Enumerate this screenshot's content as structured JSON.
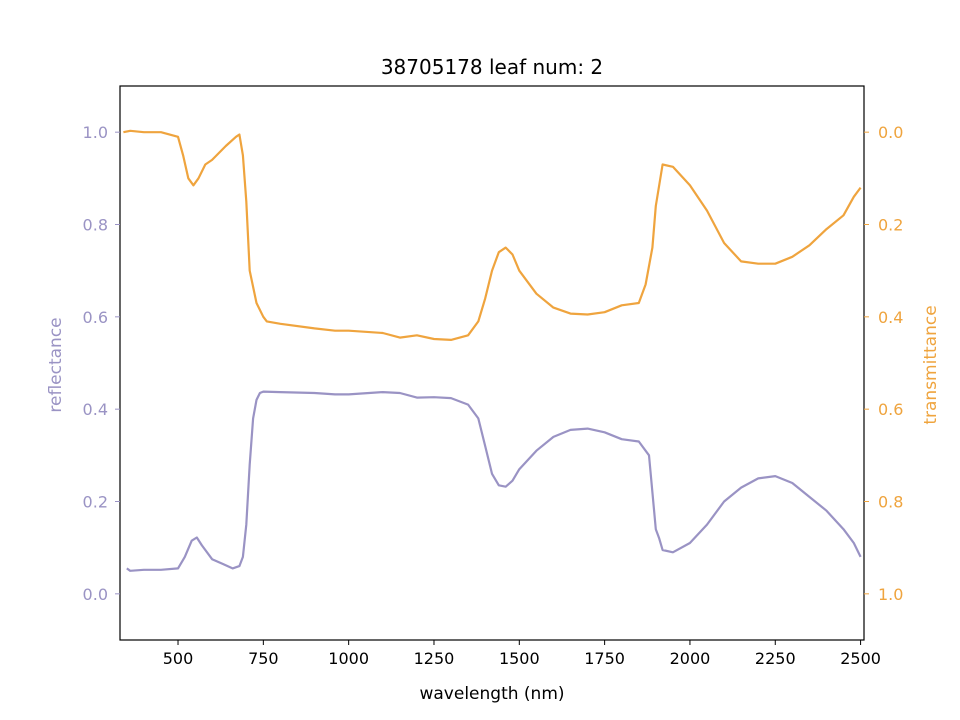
{
  "chart_data": {
    "type": "line",
    "title": "38705178 leaf num: 2",
    "xlabel": "wavelength (nm)",
    "ylabel_left": "reflectance",
    "ylabel_right": "transmittance",
    "xlim": [
      330,
      2510
    ],
    "ylim_left": [
      -0.1,
      1.1
    ],
    "ylim_right_inverted": [
      1.1,
      -0.1
    ],
    "x_ticks": [
      500,
      750,
      1000,
      1250,
      1500,
      1750,
      2000,
      2250,
      2500
    ],
    "x_tick_labels": [
      "500",
      "750",
      "1000",
      "1250",
      "1500",
      "1750",
      "2000",
      "2250",
      "2500"
    ],
    "left_ticks": [
      0.0,
      0.2,
      0.4,
      0.6,
      0.8,
      1.0
    ],
    "left_tick_labels": [
      "0.0",
      "0.2",
      "0.4",
      "0.6",
      "0.8",
      "1.0"
    ],
    "right_ticks": [
      0.0,
      0.2,
      0.4,
      0.6,
      0.8,
      1.0
    ],
    "right_tick_labels": [
      "0.0",
      "0.2",
      "0.4",
      "0.6",
      "0.8",
      "1.0"
    ],
    "grid": false,
    "colors": {
      "reflectance": "#9a93c4",
      "transmittance": "#efa43e"
    },
    "series": [
      {
        "name": "reflectance",
        "axis": "left",
        "x": [
          350,
          360,
          400,
          450,
          500,
          520,
          540,
          555,
          570,
          600,
          630,
          660,
          680,
          690,
          700,
          710,
          720,
          730,
          740,
          750,
          800,
          900,
          960,
          1000,
          1100,
          1150,
          1200,
          1250,
          1300,
          1350,
          1380,
          1400,
          1420,
          1440,
          1460,
          1480,
          1500,
          1550,
          1600,
          1650,
          1700,
          1750,
          1800,
          1850,
          1880,
          1900,
          1910,
          1920,
          1950,
          2000,
          2050,
          2100,
          2150,
          2200,
          2250,
          2300,
          2350,
          2400,
          2450,
          2480,
          2500
        ],
        "y": [
          0.055,
          0.05,
          0.052,
          0.052,
          0.055,
          0.08,
          0.115,
          0.122,
          0.105,
          0.075,
          0.065,
          0.055,
          0.06,
          0.08,
          0.15,
          0.28,
          0.38,
          0.42,
          0.435,
          0.438,
          0.437,
          0.435,
          0.432,
          0.432,
          0.437,
          0.435,
          0.425,
          0.426,
          0.424,
          0.41,
          0.38,
          0.32,
          0.26,
          0.235,
          0.232,
          0.245,
          0.27,
          0.31,
          0.34,
          0.355,
          0.358,
          0.35,
          0.335,
          0.33,
          0.3,
          0.14,
          0.12,
          0.095,
          0.09,
          0.11,
          0.15,
          0.2,
          0.23,
          0.25,
          0.255,
          0.24,
          0.21,
          0.18,
          0.14,
          0.11,
          0.08
        ]
      },
      {
        "name": "transmittance",
        "axis": "right",
        "x": [
          340,
          360,
          400,
          450,
          500,
          515,
          530,
          545,
          560,
          580,
          600,
          640,
          670,
          680,
          690,
          700,
          710,
          730,
          750,
          760,
          800,
          900,
          960,
          1000,
          1100,
          1150,
          1200,
          1250,
          1300,
          1350,
          1380,
          1400,
          1420,
          1440,
          1460,
          1480,
          1500,
          1550,
          1600,
          1650,
          1700,
          1750,
          1800,
          1850,
          1870,
          1890,
          1900,
          1920,
          1950,
          2000,
          2050,
          2100,
          2150,
          2200,
          2250,
          2300,
          2350,
          2400,
          2450,
          2480,
          2500
        ],
        "y": [
          0.0,
          -0.003,
          0.0,
          0.0,
          0.01,
          0.05,
          0.1,
          0.115,
          0.1,
          0.07,
          0.06,
          0.03,
          0.01,
          0.005,
          0.05,
          0.15,
          0.3,
          0.37,
          0.4,
          0.41,
          0.415,
          0.425,
          0.43,
          0.43,
          0.435,
          0.445,
          0.44,
          0.448,
          0.45,
          0.44,
          0.41,
          0.36,
          0.3,
          0.26,
          0.25,
          0.265,
          0.3,
          0.35,
          0.38,
          0.393,
          0.395,
          0.39,
          0.375,
          0.37,
          0.33,
          0.25,
          0.16,
          0.07,
          0.075,
          0.115,
          0.17,
          0.24,
          0.28,
          0.285,
          0.285,
          0.27,
          0.245,
          0.21,
          0.18,
          0.14,
          0.12
        ]
      }
    ]
  }
}
